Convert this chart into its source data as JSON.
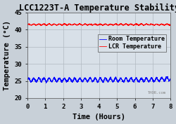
{
  "title": "LCC1223T-A Temperature Stability",
  "xlabel": "Time (Hours)",
  "ylabel": "Temperature (°C)",
  "xlim": [
    0,
    8
  ],
  "ylim": [
    20,
    45
  ],
  "yticks": [
    20,
    25,
    30,
    35,
    40,
    45
  ],
  "xticks": [
    0,
    1,
    2,
    3,
    4,
    5,
    6,
    7,
    8
  ],
  "room_temp_mean": 25.3,
  "room_temp_amplitude": 0.5,
  "room_temp_freq": 28,
  "lcr_temp_mean": 41.5,
  "lcr_temp_amplitude": 0.15,
  "lcr_temp_freq": 28,
  "room_color": "#0000ff",
  "lcr_color": "#ff0000",
  "background_color": "#c8d0d8",
  "plot_bg_color": "#d8e0e8",
  "grid_color": "#b0b8c0",
  "text_color": "#000000",
  "legend_labels": [
    "Room Temperature",
    "LCR Temperature"
  ],
  "watermark": "THOR.com",
  "title_fontsize": 8.5,
  "label_fontsize": 7.5,
  "tick_fontsize": 6.5,
  "legend_fontsize": 6.0
}
